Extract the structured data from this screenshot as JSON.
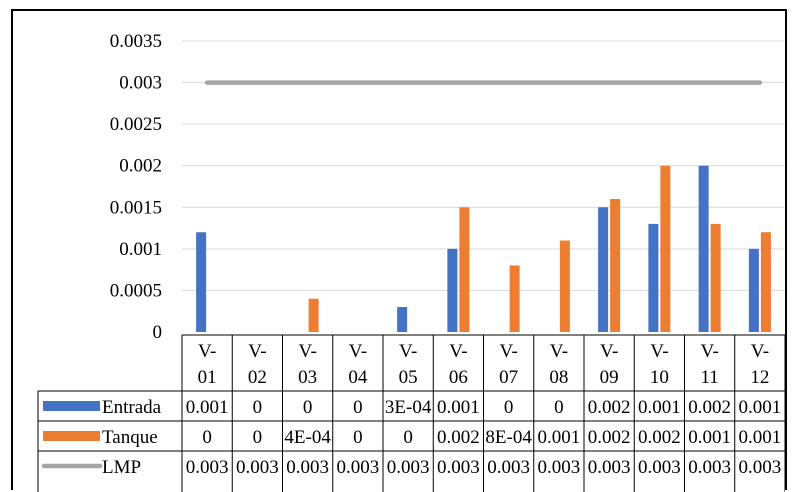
{
  "chart_data": {
    "type": "bar",
    "categories": [
      "V-01",
      "V-02",
      "V-03",
      "V-04",
      "V-05",
      "V-06",
      "V-07",
      "V-08",
      "V-09",
      "V-10",
      "V-11",
      "V-12"
    ],
    "category_lines": [
      [
        "V-",
        "01"
      ],
      [
        "V-",
        "02"
      ],
      [
        "V-",
        "03"
      ],
      [
        "V-",
        "04"
      ],
      [
        "V-",
        "05"
      ],
      [
        "V-",
        "06"
      ],
      [
        "V-",
        "07"
      ],
      [
        "V-",
        "08"
      ],
      [
        "V-",
        "09"
      ],
      [
        "V-",
        "10"
      ],
      [
        "V-",
        "11"
      ],
      [
        "V-",
        "12"
      ]
    ],
    "series": [
      {
        "name": "Entrada",
        "type": "bar",
        "color": "#4472C4",
        "values": [
          0.0012,
          0,
          0,
          0,
          0.0003,
          0.001,
          0,
          0,
          0.0015,
          0.0013,
          0.002,
          0.001
        ],
        "table_labels": [
          "0.001",
          "0",
          "0",
          "0",
          "3E-04",
          "0.001",
          "0",
          "0",
          "0.002",
          "0.001",
          "0.002",
          "0.001"
        ]
      },
      {
        "name": "Tanque",
        "type": "bar",
        "color": "#ED7D31",
        "values": [
          0,
          0,
          0.0004,
          0,
          0,
          0.0015,
          0.0008,
          0.0011,
          0.0016,
          0.002,
          0.0013,
          0.0012
        ],
        "table_labels": [
          "0",
          "0",
          "4E-04",
          "0",
          "0",
          "0.002",
          "8E-04",
          "0.001",
          "0.002",
          "0.002",
          "0.001",
          "0.001"
        ]
      },
      {
        "name": "LMP",
        "type": "line",
        "color": "#A5A5A5",
        "values": [
          0.003,
          0.003,
          0.003,
          0.003,
          0.003,
          0.003,
          0.003,
          0.003,
          0.003,
          0.003,
          0.003,
          0.003
        ],
        "table_labels": [
          "0.003",
          "0.003",
          "0.003",
          "0.003",
          "0.003",
          "0.003",
          "0.003",
          "0.003",
          "0.003",
          "0.003",
          "0.003",
          "0.003"
        ]
      }
    ],
    "yticks": [
      "0",
      "0.0005",
      "0.001",
      "0.0015",
      "0.002",
      "0.0025",
      "0.003",
      "0.0035"
    ],
    "ylim": [
      0,
      0.0035
    ],
    "title": "",
    "xlabel": "",
    "ylabel": "",
    "grid": true,
    "legend": "data-table"
  }
}
